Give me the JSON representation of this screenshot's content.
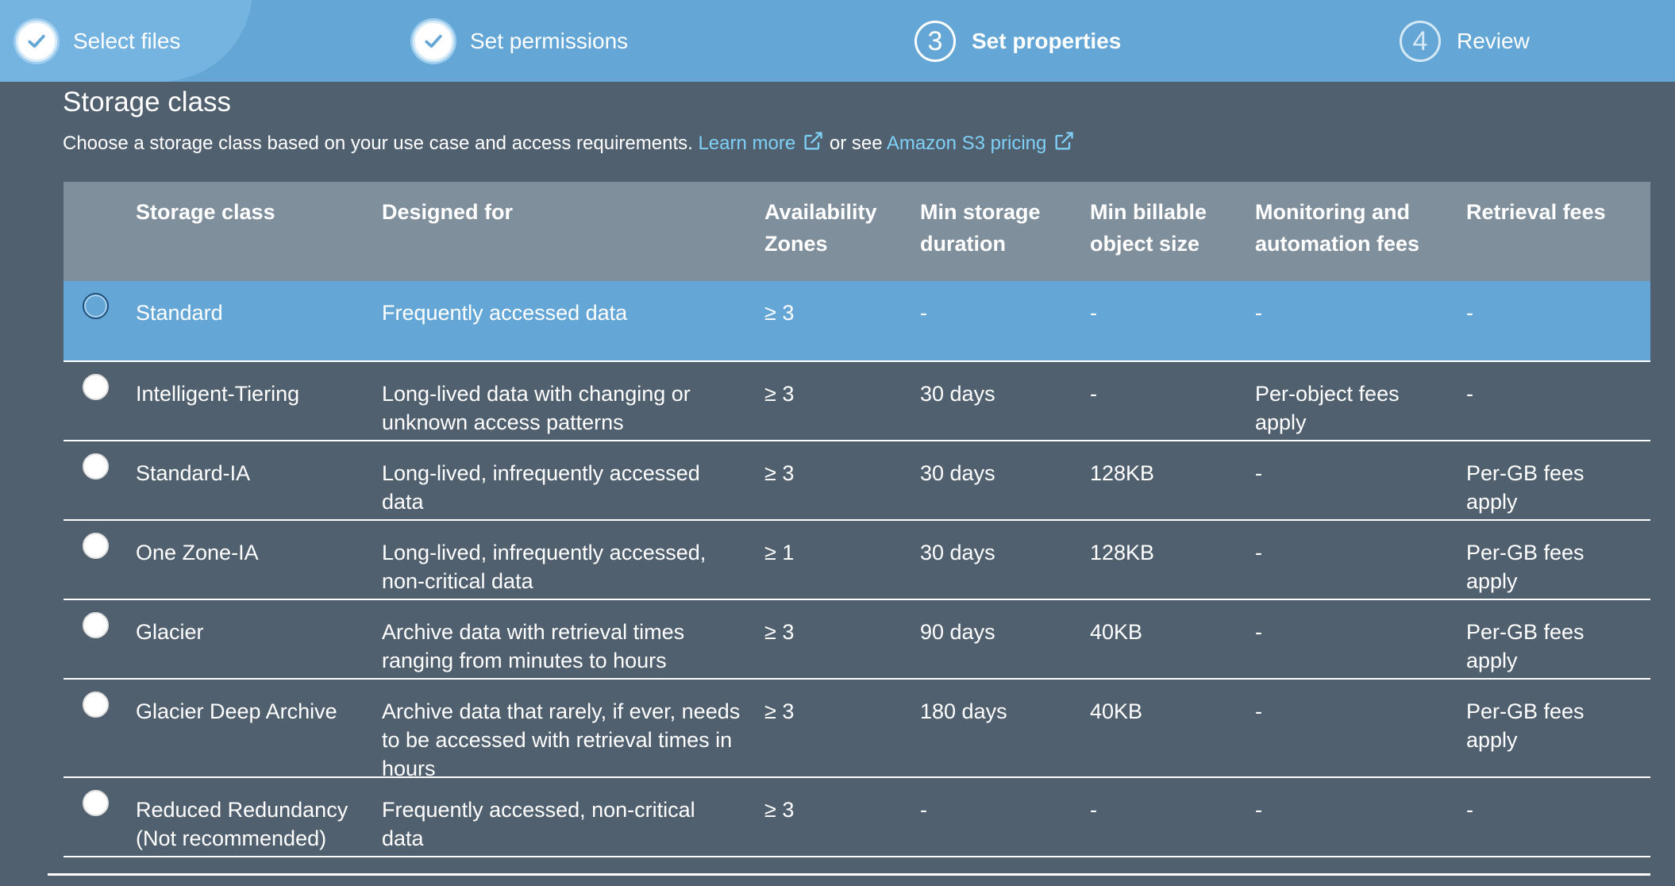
{
  "wizard": {
    "steps": [
      {
        "label": "Select files",
        "state": "done",
        "icon": "check-icon"
      },
      {
        "label": "Set permissions",
        "state": "done",
        "icon": "check-icon"
      },
      {
        "label": "Set properties",
        "number": "3",
        "state": "active"
      },
      {
        "label": "Review",
        "number": "4",
        "state": "upcoming"
      }
    ]
  },
  "section": {
    "title": "Storage class",
    "description": "Choose a storage class based on your use case and access requirements.",
    "learn_more": "Learn more",
    "or_see": "or see",
    "pricing_link": "Amazon S3 pricing",
    "link_icon": "external-link-icon"
  },
  "table": {
    "headers": {
      "storage_class": "Storage class",
      "designed_for": "Designed for",
      "az_line1": "Availability",
      "az_line2": "Zones",
      "min_duration_line1": "Min storage",
      "min_duration_line2": "duration",
      "min_size_line1": "Min billable",
      "min_size_line2": "object size",
      "monitoring_line1": "Monitoring and",
      "monitoring_line2": "automation fees",
      "retrieval": "Retrieval fees"
    },
    "rows": [
      {
        "storage_class": [
          "Standard"
        ],
        "designed_for": [
          "Frequently accessed data"
        ],
        "az": "≥ 3",
        "min_duration": "-",
        "min_size": "-",
        "monitoring": [
          "-"
        ],
        "retrieval": [
          "-"
        ],
        "selected": true
      },
      {
        "storage_class": [
          "Intelligent-Tiering"
        ],
        "designed_for": [
          "Long-lived data with changing or",
          "unknown access patterns"
        ],
        "az": "≥ 3",
        "min_duration": "30 days",
        "min_size": "-",
        "monitoring": [
          "Per-object fees",
          "apply"
        ],
        "retrieval": [
          "-"
        ],
        "selected": false
      },
      {
        "storage_class": [
          "Standard-IA"
        ],
        "designed_for": [
          "Long-lived, infrequently accessed",
          "data"
        ],
        "az": "≥ 3",
        "min_duration": "30 days",
        "min_size": "128KB",
        "monitoring": [
          "-"
        ],
        "retrieval": [
          "Per-GB fees",
          "apply"
        ],
        "selected": false
      },
      {
        "storage_class": [
          "One Zone-IA"
        ],
        "designed_for": [
          "Long-lived, infrequently accessed,",
          "non-critical data"
        ],
        "az": "≥ 1",
        "min_duration": "30 days",
        "min_size": "128KB",
        "monitoring": [
          "-"
        ],
        "retrieval": [
          "Per-GB fees",
          "apply"
        ],
        "selected": false
      },
      {
        "storage_class": [
          "Glacier"
        ],
        "designed_for": [
          "Archive data with retrieval times",
          "ranging from minutes to hours"
        ],
        "az": "≥ 3",
        "min_duration": "90 days",
        "min_size": "40KB",
        "monitoring": [
          "-"
        ],
        "retrieval": [
          "Per-GB fees",
          "apply"
        ],
        "selected": false
      },
      {
        "storage_class": [
          "Glacier Deep Archive"
        ],
        "designed_for": [
          "Archive data that rarely, if ever, needs",
          "to be accessed with retrieval times in",
          "hours"
        ],
        "az": "≥ 3",
        "min_duration": "180 days",
        "min_size": "40KB",
        "monitoring": [
          "-"
        ],
        "retrieval": [
          "Per-GB fees",
          "apply"
        ],
        "selected": false
      },
      {
        "storage_class": [
          "Reduced Redundancy",
          "(Not recommended)"
        ],
        "designed_for": [
          "Frequently accessed, non-critical",
          "data"
        ],
        "az": "≥ 3",
        "min_duration": "-",
        "min_size": "-",
        "monitoring": [
          "-"
        ],
        "retrieval": [
          "-"
        ],
        "selected": false
      }
    ]
  }
}
